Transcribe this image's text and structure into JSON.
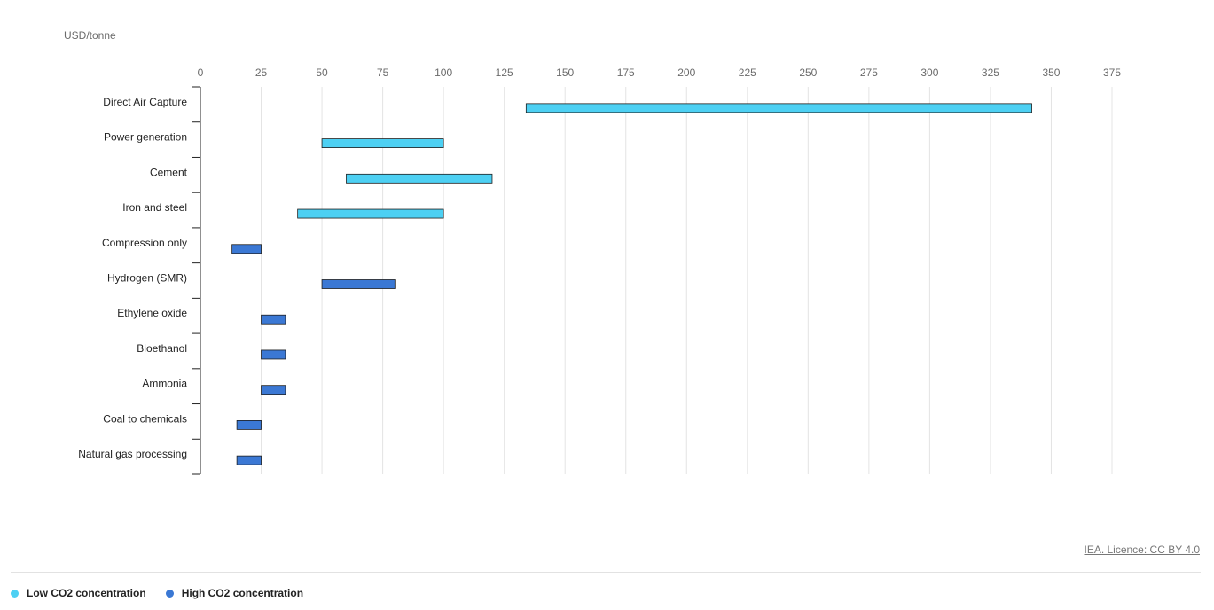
{
  "unit_label": "USD/tonne",
  "source": "IEA. Licence: CC BY 4.0",
  "legend": [
    {
      "label": "Low CO2 concentration",
      "color": "#4dd0f3"
    },
    {
      "label": "High CO2 concentration",
      "color": "#3b78d4"
    }
  ],
  "chart_data": {
    "type": "bar",
    "orientation": "horizontal-range",
    "xlim": [
      0,
      375
    ],
    "xticks": [
      0,
      25,
      50,
      75,
      100,
      125,
      150,
      175,
      200,
      225,
      250,
      275,
      300,
      325,
      350,
      375
    ],
    "grid": true,
    "legend_position": "bottom-left",
    "categories": [
      "Direct Air Capture",
      "Power generation",
      "Cement",
      "Iron and steel",
      "Compression only",
      "Hydrogen (SMR)",
      "Ethylene oxide",
      "Bioethanol",
      "Ammonia",
      "Coal to chemicals",
      "Natural gas processing"
    ],
    "series": [
      {
        "name": "Low CO2 concentration",
        "color": "#4dd0f3",
        "ranges": [
          [
            134,
            342
          ],
          [
            50,
            100
          ],
          [
            60,
            120
          ],
          [
            40,
            100
          ],
          null,
          null,
          null,
          null,
          null,
          null,
          null
        ]
      },
      {
        "name": "High CO2 concentration",
        "color": "#3b78d4",
        "ranges": [
          null,
          null,
          null,
          null,
          [
            13,
            25
          ],
          [
            50,
            80
          ],
          [
            25,
            35
          ],
          [
            25,
            35
          ],
          [
            25,
            35
          ],
          [
            15,
            25
          ],
          [
            15,
            25
          ]
        ]
      }
    ]
  }
}
